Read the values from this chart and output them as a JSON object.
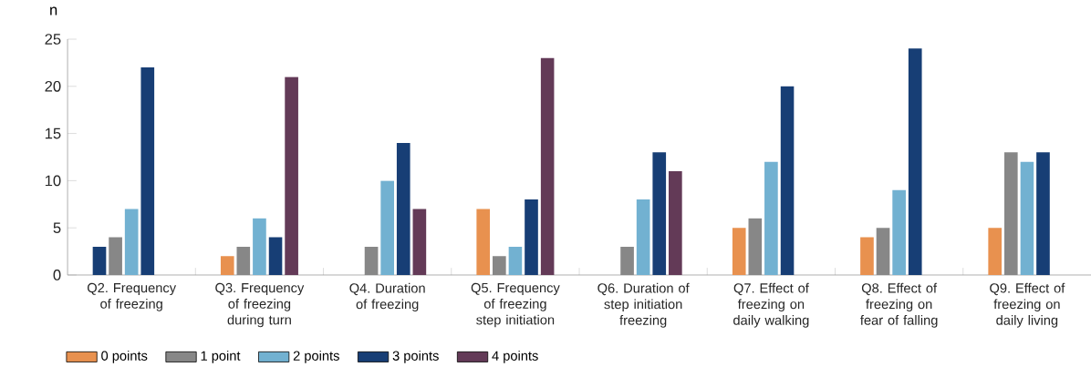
{
  "chart_data": {
    "type": "bar",
    "ylabel": "n",
    "categories": [
      "Q2. Frequency of freezing",
      "Q3. Frequency of freezing during turn",
      "Q4. Duration of freezing",
      "Q5. Frequency of freezing step initiation",
      "Q6. Duration of step initiation freezing",
      "Q7. Effect of freezing on daily walking",
      "Q8. Effect of freezing on fear of falling",
      "Q9. Effect of freezing on daily living"
    ],
    "series": [
      {
        "name": "0 points",
        "color": "#e8914f",
        "colors": [
          "#173e75",
          "#e8914f",
          "#e8914f",
          "#e8914f",
          "#e8914f",
          "#e8914f",
          "#e8914f",
          "#e8914f"
        ],
        "values": [
          3,
          2,
          null,
          7,
          null,
          5,
          4,
          5
        ]
      },
      {
        "name": "1 point",
        "color": "#878787",
        "values": [
          4,
          3,
          3,
          2,
          3,
          6,
          5,
          13
        ]
      },
      {
        "name": "2 points",
        "color": "#72b1d1",
        "values": [
          7,
          6,
          10,
          3,
          8,
          12,
          9,
          12
        ]
      },
      {
        "name": "3 points",
        "color": "#173e75",
        "values": [
          22,
          4,
          14,
          8,
          13,
          20,
          24,
          13
        ]
      },
      {
        "name": "4 points",
        "color": "#633a57",
        "values": [
          null,
          21,
          7,
          23,
          11,
          null,
          null,
          null
        ]
      }
    ],
    "ylim": [
      0,
      25
    ],
    "yticks": [
      0,
      5,
      10,
      15,
      20,
      25
    ],
    "legend": "bottom left",
    "grid": false
  }
}
